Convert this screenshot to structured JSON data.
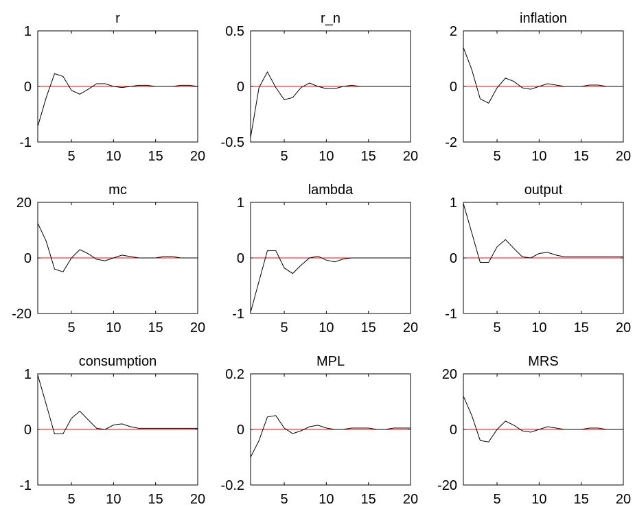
{
  "chart_data": [
    {
      "type": "line",
      "title": "r",
      "xlim": [
        1,
        20
      ],
      "ylim": [
        -1,
        1
      ],
      "xticks": [
        5,
        10,
        15,
        20
      ],
      "yticks": [
        -1,
        0,
        1
      ],
      "ytick_labels": [
        "-1",
        "0",
        "1"
      ],
      "x": [
        1,
        2,
        3,
        4,
        5,
        6,
        7,
        8,
        9,
        10,
        11,
        12,
        13,
        14,
        15,
        16,
        17,
        18,
        19,
        20
      ],
      "values": [
        -0.72,
        -0.2,
        0.23,
        0.18,
        -0.07,
        -0.14,
        -0.05,
        0.05,
        0.05,
        0,
        -0.02,
        0,
        0.02,
        0.02,
        0,
        0,
        0,
        0.02,
        0.02,
        0
      ]
    },
    {
      "type": "line",
      "title": "r_n",
      "xlim": [
        1,
        20
      ],
      "ylim": [
        -0.5,
        0.5
      ],
      "xticks": [
        5,
        10,
        15,
        20
      ],
      "yticks": [
        -0.5,
        0,
        0.5
      ],
      "ytick_labels": [
        "-0.5",
        "0",
        "0.5"
      ],
      "x": [
        1,
        2,
        3,
        4,
        5,
        6,
        7,
        8,
        9,
        10,
        11,
        12,
        13,
        14,
        15,
        16,
        17,
        18,
        19,
        20
      ],
      "values": [
        -0.46,
        -0.01,
        0.13,
        -0.01,
        -0.12,
        -0.1,
        -0.01,
        0.03,
        0,
        -0.02,
        -0.02,
        0,
        0.01,
        0,
        0,
        0,
        0,
        0,
        0,
        0
      ]
    },
    {
      "type": "line",
      "title": "inflation",
      "xlim": [
        1,
        20
      ],
      "ylim": [
        -2,
        2
      ],
      "xticks": [
        5,
        10,
        15,
        20
      ],
      "yticks": [
        -2,
        0,
        2
      ],
      "ytick_labels": [
        "-2",
        "0",
        "2"
      ],
      "x": [
        1,
        2,
        3,
        4,
        5,
        6,
        7,
        8,
        9,
        10,
        11,
        12,
        13,
        14,
        15,
        16,
        17,
        18,
        19,
        20
      ],
      "values": [
        1.4,
        0.6,
        -0.45,
        -0.6,
        -0.05,
        0.3,
        0.18,
        -0.05,
        -0.1,
        0,
        0.1,
        0.05,
        0,
        0,
        0,
        0.05,
        0.05,
        0,
        0,
        0
      ]
    },
    {
      "type": "line",
      "title": "mc",
      "xlim": [
        1,
        20
      ],
      "ylim": [
        -20,
        20
      ],
      "xticks": [
        5,
        10,
        15,
        20
      ],
      "yticks": [
        -20,
        0,
        20
      ],
      "ytick_labels": [
        "-20",
        "0",
        "20"
      ],
      "x": [
        1,
        2,
        3,
        4,
        5,
        6,
        7,
        8,
        9,
        10,
        11,
        12,
        13,
        14,
        15,
        16,
        17,
        18,
        19,
        20
      ],
      "values": [
        12.5,
        6,
        -4,
        -5,
        0,
        3,
        1.5,
        -0.5,
        -1,
        0,
        1,
        0.5,
        0,
        0,
        0,
        0.5,
        0.5,
        0,
        0,
        0
      ]
    },
    {
      "type": "line",
      "title": "lambda",
      "xlim": [
        1,
        20
      ],
      "ylim": [
        -1,
        1
      ],
      "xticks": [
        5,
        10,
        15,
        20
      ],
      "yticks": [
        -1,
        0,
        1
      ],
      "ytick_labels": [
        "-1",
        "0",
        "1"
      ],
      "x": [
        1,
        2,
        3,
        4,
        5,
        6,
        7,
        8,
        9,
        10,
        11,
        12,
        13,
        14,
        15,
        16,
        17,
        18,
        19,
        20
      ],
      "values": [
        -0.98,
        -0.42,
        0.13,
        0.13,
        -0.18,
        -0.28,
        -0.13,
        0,
        0.03,
        -0.04,
        -0.07,
        -0.02,
        0,
        0,
        0,
        0,
        0,
        0,
        0,
        0
      ]
    },
    {
      "type": "line",
      "title": "output",
      "xlim": [
        1,
        20
      ],
      "ylim": [
        -1,
        1
      ],
      "xticks": [
        5,
        10,
        15,
        20
      ],
      "yticks": [
        -1,
        0,
        1
      ],
      "ytick_labels": [
        "-1",
        "0",
        "1"
      ],
      "x": [
        1,
        2,
        3,
        4,
        5,
        6,
        7,
        8,
        9,
        10,
        11,
        12,
        13,
        14,
        15,
        16,
        17,
        18,
        19,
        20
      ],
      "values": [
        0.98,
        0.45,
        -0.08,
        -0.08,
        0.2,
        0.33,
        0.17,
        0.02,
        0,
        0.08,
        0.1,
        0.05,
        0.02,
        0.02,
        0.02,
        0.02,
        0.02,
        0.02,
        0.02,
        0.02
      ]
    },
    {
      "type": "line",
      "title": "consumption",
      "xlim": [
        1,
        20
      ],
      "ylim": [
        -1,
        1
      ],
      "xticks": [
        5,
        10,
        15,
        20
      ],
      "yticks": [
        -1,
        0,
        1
      ],
      "ytick_labels": [
        "-1",
        "0",
        "1"
      ],
      "x": [
        1,
        2,
        3,
        4,
        5,
        6,
        7,
        8,
        9,
        10,
        11,
        12,
        13,
        14,
        15,
        16,
        17,
        18,
        19,
        20
      ],
      "values": [
        0.98,
        0.45,
        -0.08,
        -0.08,
        0.2,
        0.33,
        0.17,
        0.02,
        0,
        0.08,
        0.1,
        0.05,
        0.02,
        0.02,
        0.02,
        0.02,
        0.02,
        0.02,
        0.02,
        0.02
      ]
    },
    {
      "type": "line",
      "title": "MPL",
      "xlim": [
        1,
        20
      ],
      "ylim": [
        -0.2,
        0.2
      ],
      "xticks": [
        5,
        10,
        15,
        20
      ],
      "yticks": [
        -0.2,
        0,
        0.2
      ],
      "ytick_labels": [
        "-0.2",
        "0",
        "0.2"
      ],
      "x": [
        1,
        2,
        3,
        4,
        5,
        6,
        7,
        8,
        9,
        10,
        11,
        12,
        13,
        14,
        15,
        16,
        17,
        18,
        19,
        20
      ],
      "values": [
        -0.1,
        -0.04,
        0.045,
        0.05,
        0.005,
        -0.015,
        -0.005,
        0.01,
        0.015,
        0.005,
        0,
        0,
        0.005,
        0.005,
        0.005,
        0,
        0,
        0.005,
        0.005,
        0.005
      ]
    },
    {
      "type": "line",
      "title": "MRS",
      "xlim": [
        1,
        20
      ],
      "ylim": [
        -20,
        20
      ],
      "xticks": [
        5,
        10,
        15,
        20
      ],
      "yticks": [
        -20,
        0,
        20
      ],
      "ytick_labels": [
        "-20",
        "0",
        "20"
      ],
      "x": [
        1,
        2,
        3,
        4,
        5,
        6,
        7,
        8,
        9,
        10,
        11,
        12,
        13,
        14,
        15,
        16,
        17,
        18,
        19,
        20
      ],
      "values": [
        12,
        5,
        -4,
        -4.5,
        0,
        3,
        1.5,
        -0.5,
        -1,
        0,
        1,
        0.5,
        0,
        0,
        0,
        0.5,
        0.5,
        0,
        0,
        0
      ]
    }
  ],
  "colors": {
    "series": "#000000",
    "zero_line": "#ff0000",
    "frame": "#000000"
  }
}
